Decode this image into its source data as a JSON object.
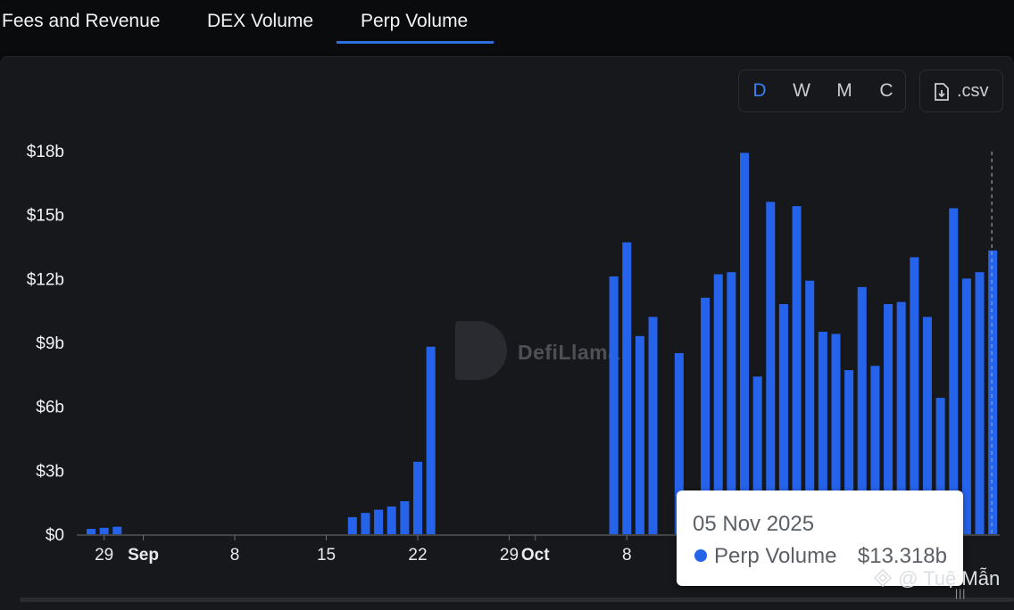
{
  "tabs": [
    {
      "label": "Fees and Revenue",
      "active": false
    },
    {
      "label": "DEX Volume",
      "active": false
    },
    {
      "label": "Perp Volume",
      "active": true
    }
  ],
  "granularity": {
    "options": [
      "D",
      "W",
      "M",
      "C"
    ],
    "selected": "D"
  },
  "csv_button": {
    "label": ".csv",
    "icon": "file-download-icon"
  },
  "watermark": {
    "text": "DefiLlama"
  },
  "tooltip": {
    "date": "05 Nov 2025",
    "series": "Perp Volume",
    "value": "$13.318b"
  },
  "credit": {
    "text": "@ Tuệ Mẫn",
    "icon": "social-logo-icon"
  },
  "colors": {
    "bar": "#2563eb",
    "background": "#17181b",
    "accent": "#3a7ff2"
  },
  "chart_data": {
    "type": "bar",
    "title": "",
    "xlabel": "",
    "ylabel": "",
    "ylim": [
      0,
      18
    ],
    "y_ticks": [
      "$0",
      "$3b",
      "$6b",
      "$9b",
      "$12b",
      "$15b",
      "$18b"
    ],
    "x_ticks": [
      {
        "date": "2025-08-29",
        "label": "29",
        "bold": false
      },
      {
        "date": "2025-09-01",
        "label": "Sep",
        "bold": true
      },
      {
        "date": "2025-09-08",
        "label": "8",
        "bold": false
      },
      {
        "date": "2025-09-15",
        "label": "15",
        "bold": false
      },
      {
        "date": "2025-09-22",
        "label": "22",
        "bold": false
      },
      {
        "date": "2025-09-29",
        "label": "29",
        "bold": false
      },
      {
        "date": "2025-10-01",
        "label": "Oct",
        "bold": true
      },
      {
        "date": "2025-10-08",
        "label": "8",
        "bold": false
      }
    ],
    "x_range": [
      "2025-08-28",
      "2025-11-05"
    ],
    "series": [
      {
        "name": "Perp Volume",
        "unit": "$b",
        "points": [
          {
            "date": "2025-08-28",
            "value": 0.25
          },
          {
            "date": "2025-08-29",
            "value": 0.3
          },
          {
            "date": "2025-08-30",
            "value": 0.35
          },
          {
            "date": "2025-09-17",
            "value": 0.8
          },
          {
            "date": "2025-09-18",
            "value": 1.0
          },
          {
            "date": "2025-09-19",
            "value": 1.15
          },
          {
            "date": "2025-09-20",
            "value": 1.3
          },
          {
            "date": "2025-09-21",
            "value": 1.55
          },
          {
            "date": "2025-09-22",
            "value": 3.4
          },
          {
            "date": "2025-09-23",
            "value": 8.8
          },
          {
            "date": "2025-10-07",
            "value": 12.1
          },
          {
            "date": "2025-10-08",
            "value": 13.7
          },
          {
            "date": "2025-10-09",
            "value": 9.3
          },
          {
            "date": "2025-10-10",
            "value": 10.2
          },
          {
            "date": "2025-10-12",
            "value": 8.5
          },
          {
            "date": "2025-10-14",
            "value": 11.1
          },
          {
            "date": "2025-10-15",
            "value": 12.2
          },
          {
            "date": "2025-10-16",
            "value": 12.3
          },
          {
            "date": "2025-10-17",
            "value": 17.9
          },
          {
            "date": "2025-10-18",
            "value": 7.4
          },
          {
            "date": "2025-10-19",
            "value": 15.6
          },
          {
            "date": "2025-10-20",
            "value": 10.8
          },
          {
            "date": "2025-10-21",
            "value": 15.4
          },
          {
            "date": "2025-10-22",
            "value": 11.9
          },
          {
            "date": "2025-10-23",
            "value": 9.5
          },
          {
            "date": "2025-10-24",
            "value": 9.4
          },
          {
            "date": "2025-10-25",
            "value": 7.7
          },
          {
            "date": "2025-10-26",
            "value": 11.6
          },
          {
            "date": "2025-10-27",
            "value": 7.9
          },
          {
            "date": "2025-10-28",
            "value": 10.8
          },
          {
            "date": "2025-10-29",
            "value": 10.9
          },
          {
            "date": "2025-10-30",
            "value": 13.0
          },
          {
            "date": "2025-10-31",
            "value": 10.2
          },
          {
            "date": "2025-11-01",
            "value": 6.4
          },
          {
            "date": "2025-11-02",
            "value": 15.3
          },
          {
            "date": "2025-11-03",
            "value": 12.0
          },
          {
            "date": "2025-11-04",
            "value": 12.3
          },
          {
            "date": "2025-11-05",
            "value": 13.318
          }
        ]
      }
    ],
    "grid": false,
    "legend": "none",
    "crosshair_date": "2025-11-05"
  }
}
